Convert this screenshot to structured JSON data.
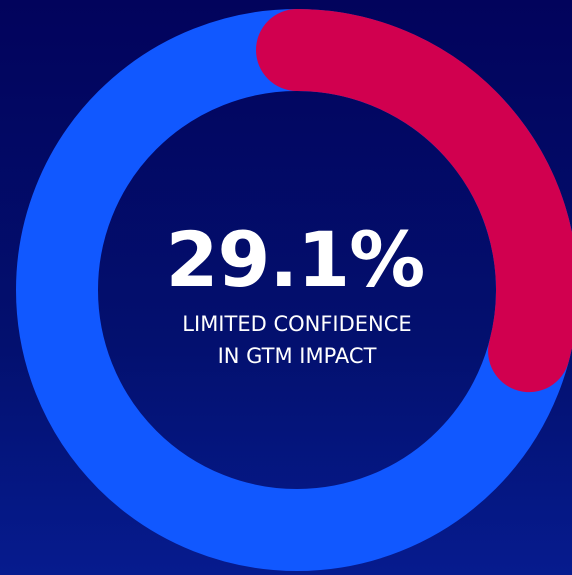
{
  "chart_data": {
    "type": "donut",
    "values": [
      29.1
    ],
    "value_labels": [
      "29.1%"
    ],
    "caption_lines": [
      "LIMITED CONFIDENCE",
      "IN GTM IMPACT"
    ],
    "color": "#d1004f",
    "track_color": "#1158ff"
  }
}
